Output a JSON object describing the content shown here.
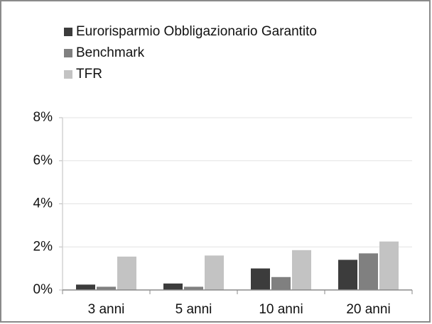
{
  "chart_data": {
    "type": "bar",
    "categories": [
      "3 anni",
      "5 anni",
      "10 anni",
      "20 anni"
    ],
    "series": [
      {
        "name": "Eurorisparmio Obbligazionario Garantito",
        "color": "#3c3c3c",
        "values": [
          0.25,
          0.3,
          1.0,
          1.4
        ]
      },
      {
        "name": "Benchmark",
        "color": "#808080",
        "values": [
          0.15,
          0.15,
          0.6,
          1.7
        ]
      },
      {
        "name": "TFR",
        "color": "#c3c3c3",
        "values": [
          1.55,
          1.6,
          1.85,
          2.25
        ]
      }
    ],
    "ylim": [
      0,
      8
    ],
    "yticks": [
      {
        "value": 0,
        "label": "0%"
      },
      {
        "value": 2,
        "label": "2%"
      },
      {
        "value": 4,
        "label": "4%"
      },
      {
        "value": 6,
        "label": "6%"
      },
      {
        "value": 8,
        "label": "8%"
      }
    ],
    "grid": true,
    "legend": "top-left"
  }
}
